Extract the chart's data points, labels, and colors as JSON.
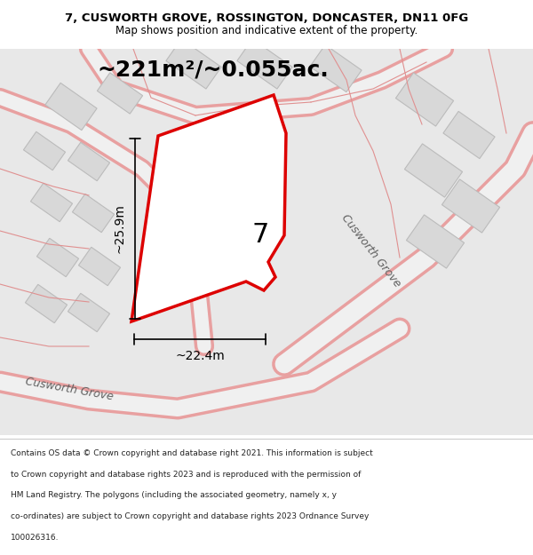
{
  "title_line1": "7, CUSWORTH GROVE, ROSSINGTON, DONCASTER, DN11 0FG",
  "title_line2": "Map shows position and indicative extent of the property.",
  "area_text": "~221m²/~0.055ac.",
  "dim_height": "~25.9m",
  "dim_width": "~22.4m",
  "plot_number": "7",
  "footer_lines": [
    "Contains OS data © Crown copyright and database right 2021. This information is subject",
    "to Crown copyright and database rights 2023 and is reproduced with the permission of",
    "HM Land Registry. The polygons (including the associated geometry, namely x, y",
    "co-ordinates) are subject to Crown copyright and database rights 2023 Ordnance Survey",
    "100026316."
  ],
  "road_color_light": "#e8a0a0",
  "plot_edge": "#dd0000",
  "title_bg": "#ffffff",
  "footer_bg": "#ffffff",
  "map_bg": "#eeeeee"
}
